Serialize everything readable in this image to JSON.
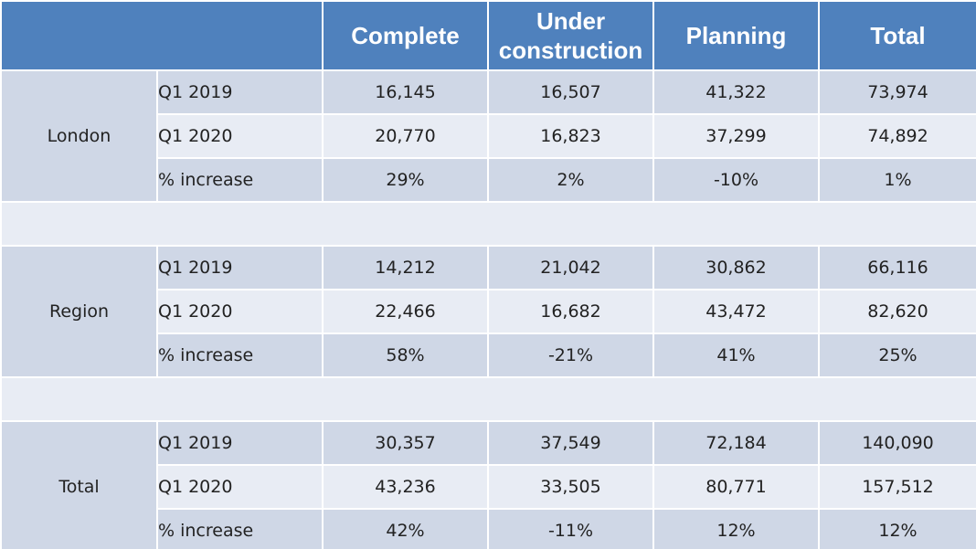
{
  "header": {
    "blank": "",
    "columns": [
      "Complete",
      "Under construction",
      "Planning",
      "Total"
    ]
  },
  "groups": [
    {
      "name": "London",
      "rows": [
        {
          "metric": "Q1 2019",
          "values": [
            "16,145",
            "16,507",
            "41,322",
            "73,974"
          ]
        },
        {
          "metric": "Q1 2020",
          "values": [
            "20,770",
            "16,823",
            "37,299",
            "74,892"
          ]
        },
        {
          "metric": "% increase",
          "values": [
            "29%",
            "2%",
            "-10%",
            "1%"
          ]
        }
      ]
    },
    {
      "name": "Region",
      "rows": [
        {
          "metric": "Q1 2019",
          "values": [
            "14,212",
            "21,042",
            "30,862",
            "66,116"
          ]
        },
        {
          "metric": "Q1 2020",
          "values": [
            "22,466",
            "16,682",
            "43,472",
            "82,620"
          ]
        },
        {
          "metric": "% increase",
          "values": [
            "58%",
            "-21%",
            "41%",
            "25%"
          ]
        }
      ]
    },
    {
      "name": "Total",
      "rows": [
        {
          "metric": "Q1 2019",
          "values": [
            "30,357",
            "37,549",
            "72,184",
            "140,090"
          ]
        },
        {
          "metric": "Q1 2020",
          "values": [
            "43,236",
            "33,505",
            "80,771",
            "157,512"
          ]
        },
        {
          "metric": "% increase",
          "values": [
            "42%",
            "-11%",
            "12%",
            "12%"
          ]
        }
      ]
    }
  ],
  "colors": {
    "header": "#4f81bd",
    "band_dark": "#cfd7e6",
    "band_light": "#e8ecf4",
    "header_text": "#ffffff"
  }
}
